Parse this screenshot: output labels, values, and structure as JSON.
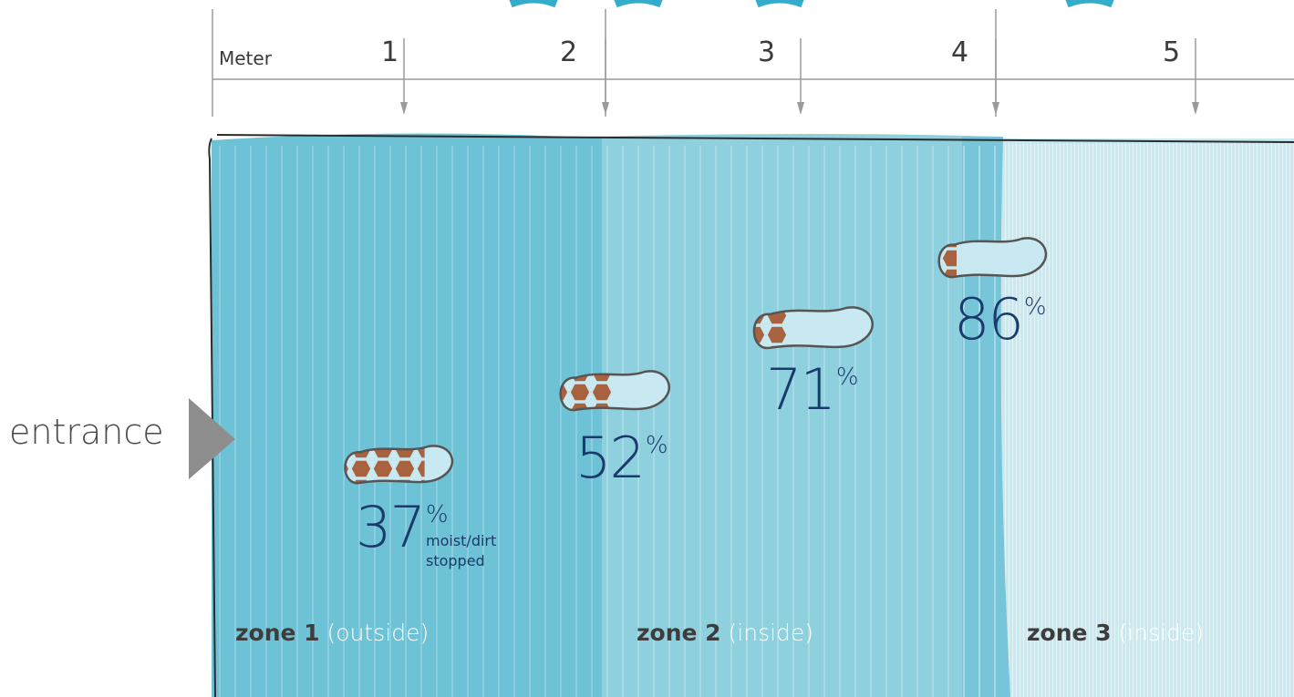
{
  "axis": {
    "unit_label": "Meter",
    "ticks": [
      "1",
      "2",
      "3",
      "4",
      "5"
    ]
  },
  "entrance_label": "entrance",
  "measurements": [
    {
      "value": "37",
      "unit": "%",
      "note_line1": "moist/dirt",
      "note_line2": "stopped"
    },
    {
      "value": "52",
      "unit": "%"
    },
    {
      "value": "71",
      "unit": "%"
    },
    {
      "value": "86",
      "unit": "%"
    }
  ],
  "zones": [
    {
      "name": "zone 1",
      "location": "(outside)"
    },
    {
      "name": "zone 2",
      "location": "(inside)"
    },
    {
      "name": "zone 3",
      "location": "(inside)"
    }
  ],
  "colors": {
    "zone1": "#6ec2d6",
    "zone2": "#8fd0de",
    "zone3": "#c9e9f1",
    "dirt": "#a8623f",
    "percent_text": "#1a3a6b",
    "title_cut": "#29a9c9"
  },
  "icons": [
    "shoe-sole-icon",
    "entrance-arrow-icon",
    "meter-arrow-icon"
  ]
}
